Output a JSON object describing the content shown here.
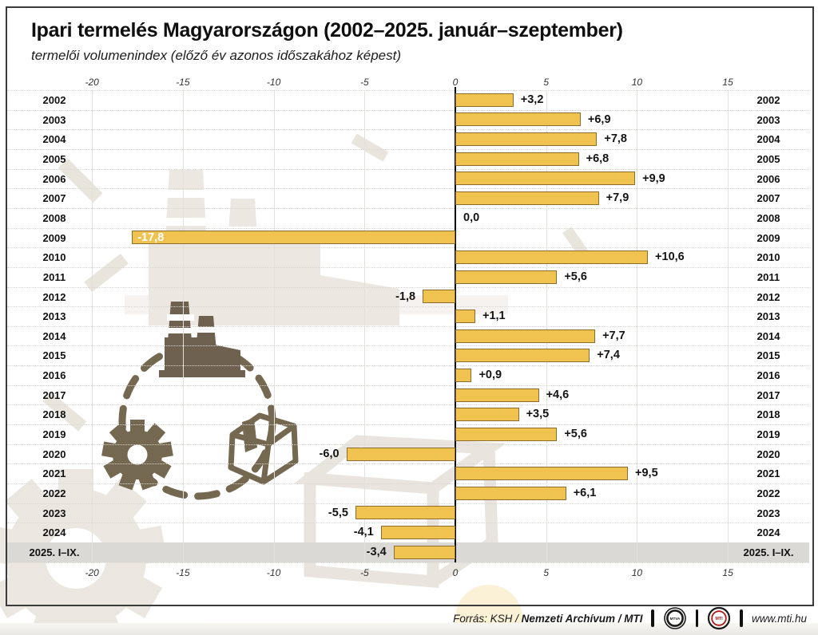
{
  "header": {
    "title": "Ipari termelés Magyarországon (2002–2025. január–szeptember)",
    "subtitle": "termelői volumenindex (előző év azonos időszakához képest)"
  },
  "chart_data": {
    "type": "bar",
    "orientation": "horizontal",
    "title": "Ipari termelés Magyarországon (2002–2025. január–szeptember)",
    "subtitle": "termelői volumenindex (előző év azonos időszakához képest)",
    "categories": [
      "2002",
      "2003",
      "2004",
      "2005",
      "2006",
      "2007",
      "2008",
      "2009",
      "2010",
      "2011",
      "2012",
      "2013",
      "2014",
      "2015",
      "2016",
      "2017",
      "2018",
      "2019",
      "2020",
      "2021",
      "2022",
      "2023",
      "2024",
      "2025. I–IX."
    ],
    "values": [
      3.2,
      6.9,
      7.8,
      6.8,
      9.9,
      7.9,
      0.0,
      -17.8,
      10.6,
      5.6,
      -1.8,
      1.1,
      7.7,
      7.4,
      0.9,
      4.6,
      3.5,
      5.6,
      -6.0,
      9.5,
      6.1,
      -5.5,
      -4.1,
      -3.4
    ],
    "value_labels": [
      "+3,2",
      "+6,9",
      "+7,8",
      "+6,8",
      "+9,9",
      "+7,9",
      "0,0",
      "-17,8",
      "+10,6",
      "+5,6",
      "-1,8",
      "+1,1",
      "+7,7",
      "+7,4",
      "+0,9",
      "+4,6",
      "+3,5",
      "+5,6",
      "-6,0",
      "+9,5",
      "+6,1",
      "-5,5",
      "-4,1",
      "-3,4"
    ],
    "x_ticks": [
      -20,
      -15,
      -10,
      -5,
      0,
      5,
      10,
      15
    ],
    "x_tick_labels": [
      "-20",
      "-15",
      "-10",
      "-5",
      "0",
      "5",
      "10",
      "15"
    ],
    "xlim": [
      -21.3,
      16.0
    ],
    "grid": true,
    "axis_label_position": "top-and-bottom",
    "year_labels_position": "both-sides",
    "highlight_category": "2025. I–IX.",
    "inside_label_threshold": -17,
    "colors": {
      "bar_fill": "#f0c351",
      "bar_border": "#8c6d2e",
      "highlight_band": "#dbd9d5",
      "zero_line": "#000000",
      "inside_label_text": "#ffffff"
    }
  },
  "footer": {
    "source_prefix": "Forrás: KSH / ",
    "source_bold_1": "Nemzeti Archívum",
    "source_separator": " / ",
    "source_bold_2": "MTI",
    "logo_mtva_text": "MTVA",
    "logo_mti_text": "MTI",
    "website": "www.mti.hu"
  }
}
